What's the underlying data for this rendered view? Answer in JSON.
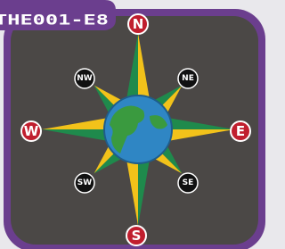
{
  "tag": "THE001-E8",
  "directions": {
    "n": "N",
    "ne": "NE",
    "e": "E",
    "se": "SE",
    "s": "S",
    "sw": "SW",
    "w": "W",
    "nw": "NW"
  }
}
